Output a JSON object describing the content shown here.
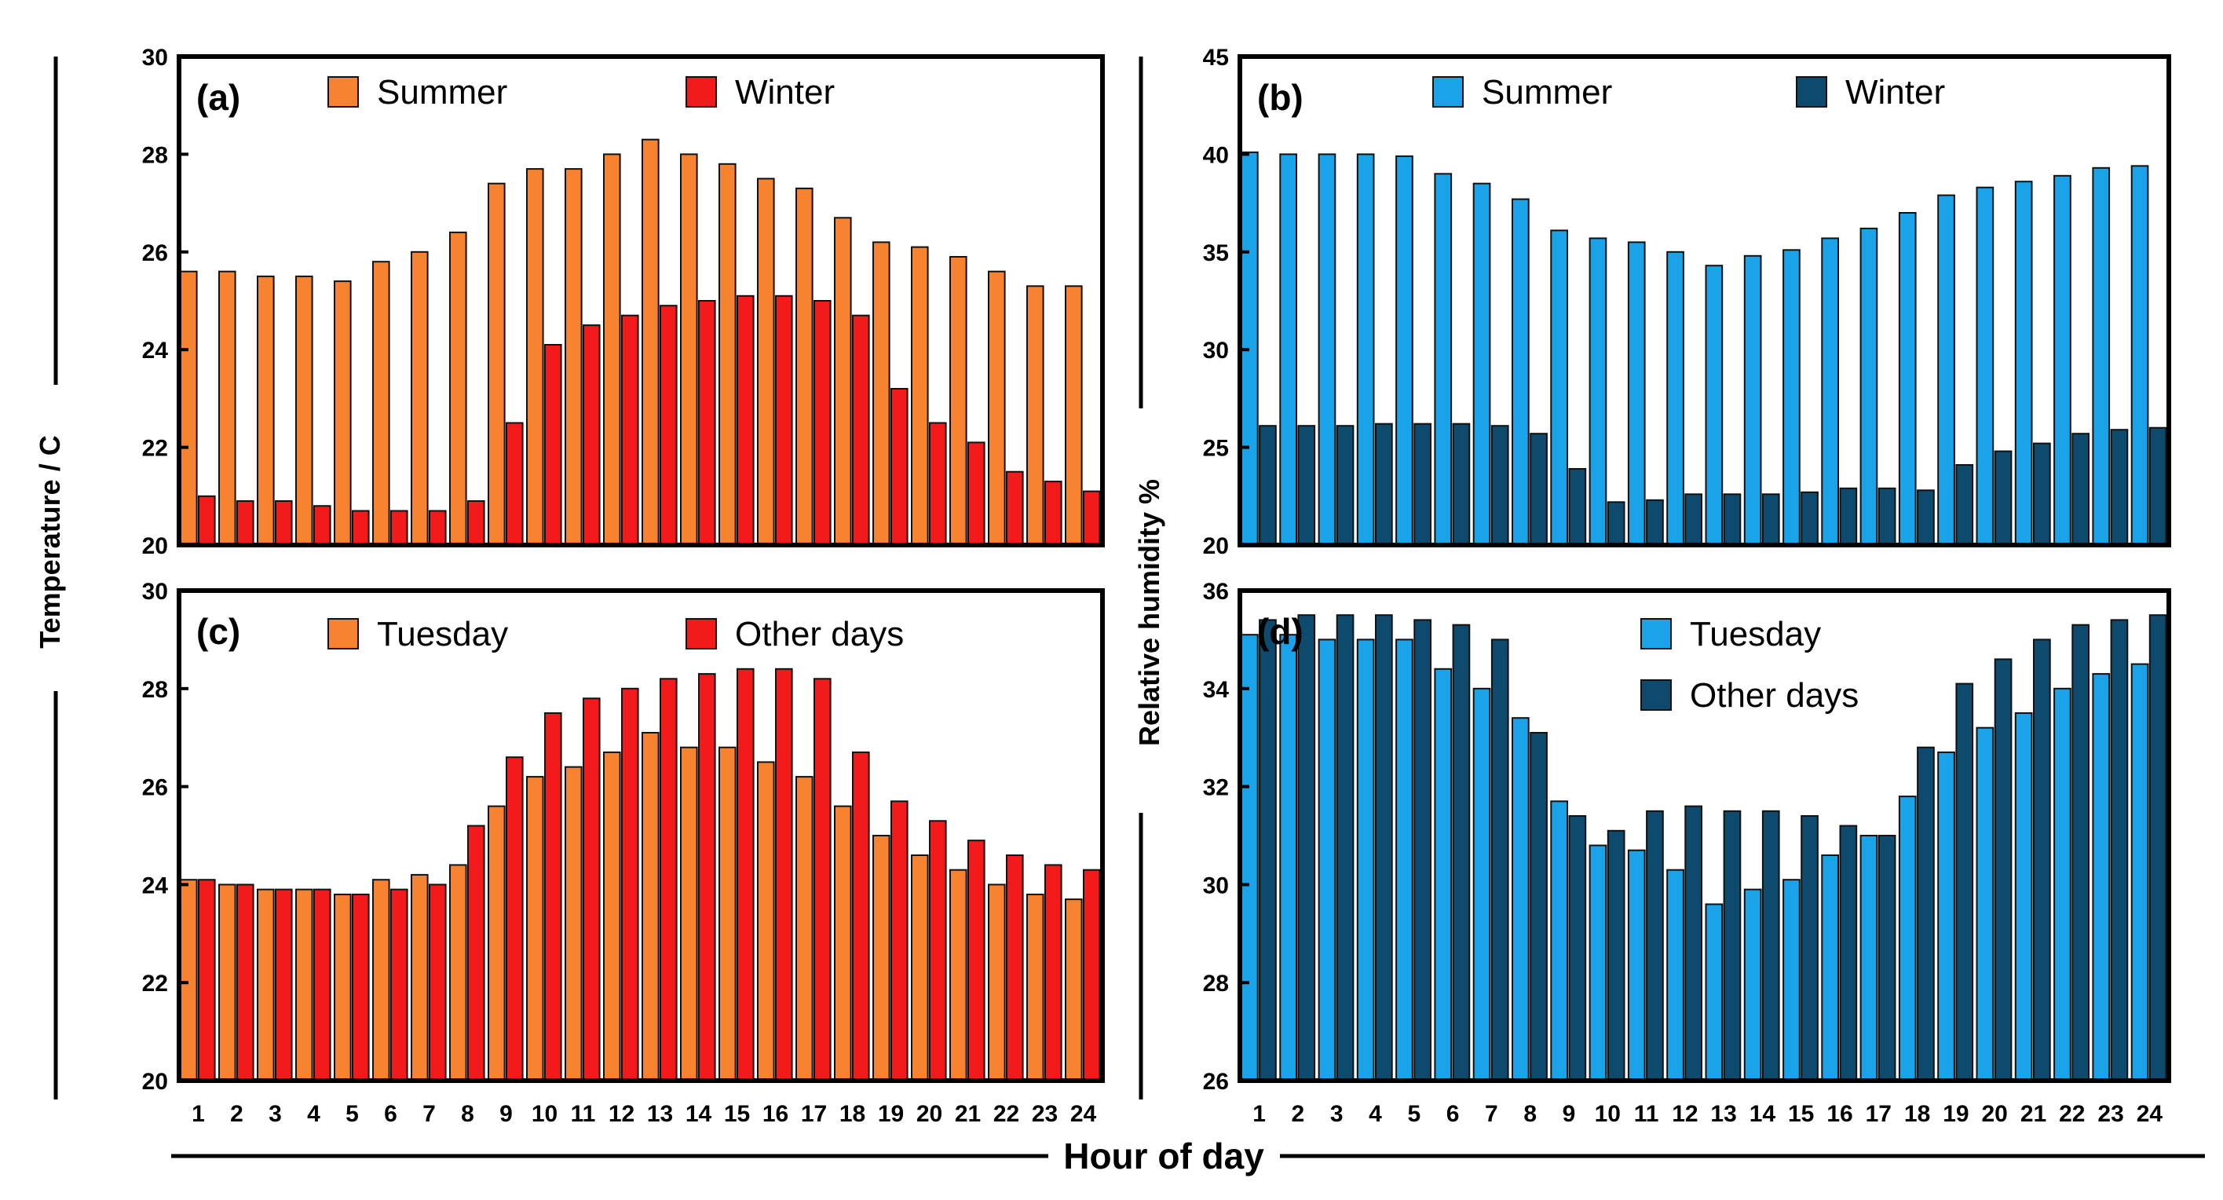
{
  "figure": {
    "shared_xlabel": "Hour of day",
    "left_ylabel": "Temperature / C",
    "right_ylabel": "Relative humidity %"
  },
  "chart_data": [
    {
      "id": "a",
      "type": "bar",
      "panel_label": "(a)",
      "categories": [
        "1",
        "2",
        "3",
        "4",
        "5",
        "6",
        "7",
        "8",
        "9",
        "10",
        "11",
        "12",
        "13",
        "14",
        "15",
        "16",
        "17",
        "18",
        "19",
        "20",
        "21",
        "22",
        "23",
        "24"
      ],
      "series": [
        {
          "name": "Summer",
          "color": "#F7822F",
          "values": [
            25.6,
            25.6,
            25.5,
            25.5,
            25.4,
            25.8,
            26.0,
            26.4,
            27.4,
            27.7,
            27.7,
            28.0,
            28.3,
            28.0,
            27.8,
            27.5,
            27.3,
            26.7,
            26.2,
            26.1,
            25.9,
            25.6,
            25.3,
            25.3
          ]
        },
        {
          "name": "Winter",
          "color": "#F21A1A",
          "values": [
            21.0,
            20.9,
            20.9,
            20.8,
            20.7,
            20.7,
            20.7,
            20.9,
            22.5,
            24.1,
            24.5,
            24.7,
            24.9,
            25.0,
            25.1,
            25.1,
            25.0,
            24.7,
            23.2,
            22.5,
            22.1,
            21.5,
            21.3,
            21.1
          ]
        }
      ],
      "ylim": [
        20,
        30
      ],
      "yticks": [
        "20",
        "22",
        "24",
        "26",
        "28",
        "30"
      ],
      "show_xticks": false
    },
    {
      "id": "b",
      "type": "bar",
      "panel_label": "(b)",
      "categories": [
        "1",
        "2",
        "3",
        "4",
        "5",
        "6",
        "7",
        "8",
        "9",
        "10",
        "11",
        "12",
        "13",
        "14",
        "15",
        "16",
        "17",
        "18",
        "19",
        "20",
        "21",
        "22",
        "23",
        "24"
      ],
      "series": [
        {
          "name": "Summer",
          "color": "#1AA3E8",
          "values": [
            40.1,
            40.0,
            40.0,
            40.0,
            39.9,
            39.0,
            38.5,
            37.7,
            36.1,
            35.7,
            35.5,
            35.0,
            34.3,
            34.8,
            35.1,
            35.7,
            36.2,
            37.0,
            37.9,
            38.3,
            38.6,
            38.9,
            39.3,
            39.4
          ]
        },
        {
          "name": "Winter",
          "color": "#0D4A6E",
          "values": [
            26.1,
            26.1,
            26.1,
            26.2,
            26.2,
            26.2,
            26.1,
            25.7,
            23.9,
            22.2,
            22.3,
            22.6,
            22.6,
            22.6,
            22.7,
            22.9,
            22.9,
            22.8,
            24.1,
            24.8,
            25.2,
            25.7,
            25.9,
            26.0
          ]
        }
      ],
      "ylim": [
        20,
        45
      ],
      "yticks": [
        "20",
        "25",
        "30",
        "35",
        "40",
        "45"
      ],
      "show_xticks": false
    },
    {
      "id": "c",
      "type": "bar",
      "panel_label": "(c)",
      "categories": [
        "1",
        "2",
        "3",
        "4",
        "5",
        "6",
        "7",
        "8",
        "9",
        "10",
        "11",
        "12",
        "13",
        "14",
        "15",
        "16",
        "17",
        "18",
        "19",
        "20",
        "21",
        "22",
        "23",
        "24"
      ],
      "series": [
        {
          "name": "Tuesday",
          "color": "#F7822F",
          "values": [
            24.1,
            24.0,
            23.9,
            23.9,
            23.8,
            24.1,
            24.2,
            24.4,
            25.6,
            26.2,
            26.4,
            26.7,
            27.1,
            26.8,
            26.8,
            26.5,
            26.2,
            25.6,
            25.0,
            24.6,
            24.3,
            24.0,
            23.8,
            23.7
          ]
        },
        {
          "name": "Other days",
          "color": "#F21A1A",
          "values": [
            24.1,
            24.0,
            23.9,
            23.9,
            23.8,
            23.9,
            24.0,
            25.2,
            26.6,
            27.5,
            27.8,
            28.0,
            28.2,
            28.3,
            28.4,
            28.4,
            28.2,
            26.7,
            25.7,
            25.3,
            24.9,
            24.6,
            24.4,
            24.3
          ]
        }
      ],
      "ylim": [
        20,
        30
      ],
      "yticks": [
        "20",
        "22",
        "24",
        "26",
        "28",
        "30"
      ],
      "show_xticks": true
    },
    {
      "id": "d",
      "type": "bar",
      "panel_label": "(d)",
      "categories": [
        "1",
        "2",
        "3",
        "4",
        "5",
        "6",
        "7",
        "8",
        "9",
        "10",
        "11",
        "12",
        "13",
        "14",
        "15",
        "16",
        "17",
        "18",
        "19",
        "20",
        "21",
        "22",
        "23",
        "24"
      ],
      "series": [
        {
          "name": "Tuesday",
          "color": "#1AA3E8",
          "values": [
            35.1,
            35.1,
            35.0,
            35.0,
            35.0,
            34.4,
            34.0,
            33.4,
            31.7,
            30.8,
            30.7,
            30.3,
            29.6,
            29.9,
            30.1,
            30.6,
            31.0,
            31.8,
            32.7,
            33.2,
            33.5,
            34.0,
            34.3,
            34.5
          ]
        },
        {
          "name": "Other days",
          "color": "#0D4A6E",
          "values": [
            35.4,
            35.5,
            35.5,
            35.5,
            35.4,
            35.3,
            35.0,
            33.1,
            31.4,
            31.1,
            31.5,
            31.6,
            31.5,
            31.5,
            31.4,
            31.2,
            31.0,
            32.8,
            34.1,
            34.6,
            35.0,
            35.3,
            35.4,
            35.5
          ]
        }
      ],
      "ylim": [
        26,
        36
      ],
      "yticks": [
        "26",
        "28",
        "30",
        "32",
        "34",
        "36"
      ],
      "show_xticks": true
    }
  ]
}
